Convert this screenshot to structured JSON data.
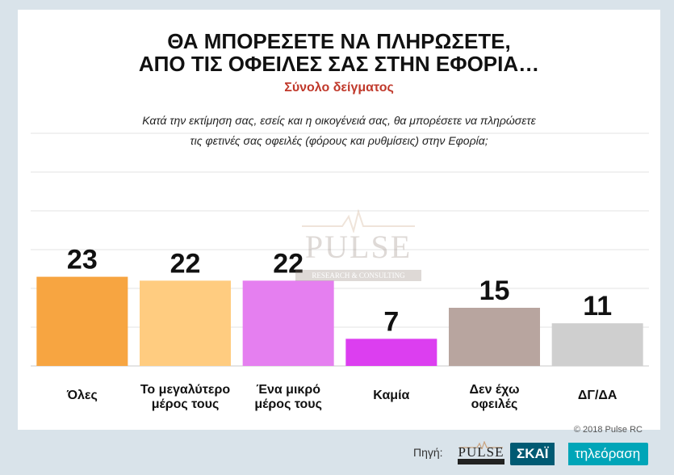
{
  "header": {
    "title_line1": "ΘΑ ΜΠΟΡΕΣΕΤΕ ΝΑ ΠΛΗΡΩΣΕΤΕ,",
    "title_line2": "ΑΠΟ ΤΙΣ ΟΦΕΙΛΕΣ ΣΑΣ ΣΤΗΝ ΕΦΟΡΙΑ…",
    "subtitle": "Σύνολο δείγματος",
    "question_line1": "Κατά την εκτίμηση σας, εσείς και η οικογένειά σας, θα μπορέσετε να πληρώσετε",
    "question_line2": "τις φετινές σας οφειλές (φόρους και ρυθμίσεις) στην Εφορία;"
  },
  "watermark": {
    "name": "PULSE",
    "sub": "RESEARCH & CONSULTING"
  },
  "copyright": "© 2018 Pulse RC",
  "footer": {
    "source_label": "Πηγή:",
    "pulse_logo": "PULSE",
    "skai_label": "ΣΚΑΪ",
    "tv_label": "τηλεόραση"
  },
  "colors": {
    "title": "#111111",
    "subtitle": "#c0392b",
    "background": "#d9e3ea",
    "skai_dark": "#005a73",
    "skai_light": "#00a5b8"
  },
  "chart_data": {
    "type": "bar",
    "categories": [
      [
        "Όλες"
      ],
      [
        "Το μεγαλύτερο",
        "μέρος τους"
      ],
      [
        "Ένα μικρό",
        "μέρος τους"
      ],
      [
        "Καμία"
      ],
      [
        "Δεν έχω",
        "οφειλές"
      ],
      [
        "ΔΓ/ΔΑ"
      ]
    ],
    "values": [
      23,
      22,
      22,
      7,
      15,
      11
    ],
    "colors": [
      "#f7a541",
      "#ffcc80",
      "#e57ff0",
      "#dc3ef0",
      "#b8a59f",
      "#cfcfcf"
    ],
    "data_labels": true,
    "grid": true,
    "ylim": [
      0,
      60
    ]
  }
}
